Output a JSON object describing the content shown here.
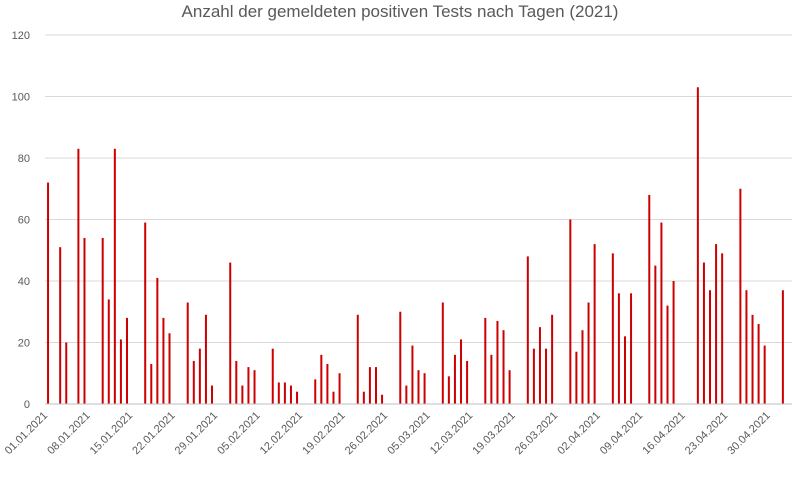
{
  "chart_data": {
    "type": "bar",
    "title": "Anzahl der gemeldeten positiven Tests nach Tagen (2021)",
    "xlabel": "",
    "ylabel": "",
    "ylim": [
      0,
      120
    ],
    "yticks": [
      0,
      20,
      40,
      60,
      80,
      100,
      120
    ],
    "grid": true,
    "bar_color": "#cc0000",
    "x_start": "2021-01-01",
    "x_end": "2021-05-03",
    "x_tick_labels": [
      "01.01.2021",
      "08.01.2021",
      "15.01.2021",
      "22.01.2021",
      "29.01.2021",
      "05.02.2021",
      "12.02.2021",
      "19.02.2021",
      "26.02.2021",
      "05.03.2021",
      "12.03.2021",
      "19.03.2021",
      "26.03.2021",
      "02.04.2021",
      "09.04.2021",
      "16.04.2021",
      "23.04.2021",
      "30.04.2021"
    ],
    "points": [
      {
        "x": "2021-01-01",
        "y": 72
      },
      {
        "x": "2021-01-03",
        "y": 51
      },
      {
        "x": "2021-01-04",
        "y": 20
      },
      {
        "x": "2021-01-06",
        "y": 83
      },
      {
        "x": "2021-01-07",
        "y": 54
      },
      {
        "x": "2021-01-10",
        "y": 54
      },
      {
        "x": "2021-01-11",
        "y": 34
      },
      {
        "x": "2021-01-12",
        "y": 83
      },
      {
        "x": "2021-01-13",
        "y": 21
      },
      {
        "x": "2021-01-14",
        "y": 28
      },
      {
        "x": "2021-01-17",
        "y": 59
      },
      {
        "x": "2021-01-18",
        "y": 13
      },
      {
        "x": "2021-01-19",
        "y": 41
      },
      {
        "x": "2021-01-20",
        "y": 28
      },
      {
        "x": "2021-01-21",
        "y": 23
      },
      {
        "x": "2021-01-24",
        "y": 33
      },
      {
        "x": "2021-01-25",
        "y": 14
      },
      {
        "x": "2021-01-26",
        "y": 18
      },
      {
        "x": "2021-01-27",
        "y": 29
      },
      {
        "x": "2021-01-28",
        "y": 6
      },
      {
        "x": "2021-01-31",
        "y": 46
      },
      {
        "x": "2021-02-01",
        "y": 14
      },
      {
        "x": "2021-02-02",
        "y": 6
      },
      {
        "x": "2021-02-03",
        "y": 12
      },
      {
        "x": "2021-02-04",
        "y": 11
      },
      {
        "x": "2021-02-07",
        "y": 18
      },
      {
        "x": "2021-02-08",
        "y": 7
      },
      {
        "x": "2021-02-09",
        "y": 7
      },
      {
        "x": "2021-02-10",
        "y": 6
      },
      {
        "x": "2021-02-11",
        "y": 4
      },
      {
        "x": "2021-02-14",
        "y": 8
      },
      {
        "x": "2021-02-15",
        "y": 16
      },
      {
        "x": "2021-02-16",
        "y": 13
      },
      {
        "x": "2021-02-17",
        "y": 4
      },
      {
        "x": "2021-02-18",
        "y": 10
      },
      {
        "x": "2021-02-21",
        "y": 29
      },
      {
        "x": "2021-02-22",
        "y": 4
      },
      {
        "x": "2021-02-23",
        "y": 12
      },
      {
        "x": "2021-02-24",
        "y": 12
      },
      {
        "x": "2021-02-25",
        "y": 3
      },
      {
        "x": "2021-02-28",
        "y": 30
      },
      {
        "x": "2021-03-01",
        "y": 6
      },
      {
        "x": "2021-03-02",
        "y": 19
      },
      {
        "x": "2021-03-03",
        "y": 11
      },
      {
        "x": "2021-03-04",
        "y": 10
      },
      {
        "x": "2021-03-07",
        "y": 33
      },
      {
        "x": "2021-03-08",
        "y": 9
      },
      {
        "x": "2021-03-09",
        "y": 16
      },
      {
        "x": "2021-03-10",
        "y": 21
      },
      {
        "x": "2021-03-11",
        "y": 14
      },
      {
        "x": "2021-03-14",
        "y": 28
      },
      {
        "x": "2021-03-15",
        "y": 16
      },
      {
        "x": "2021-03-16",
        "y": 27
      },
      {
        "x": "2021-03-17",
        "y": 24
      },
      {
        "x": "2021-03-18",
        "y": 11
      },
      {
        "x": "2021-03-21",
        "y": 48
      },
      {
        "x": "2021-03-22",
        "y": 18
      },
      {
        "x": "2021-03-23",
        "y": 25
      },
      {
        "x": "2021-03-24",
        "y": 18
      },
      {
        "x": "2021-03-25",
        "y": 29
      },
      {
        "x": "2021-03-28",
        "y": 60
      },
      {
        "x": "2021-03-29",
        "y": 17
      },
      {
        "x": "2021-03-30",
        "y": 24
      },
      {
        "x": "2021-03-31",
        "y": 33
      },
      {
        "x": "2021-04-01",
        "y": 52
      },
      {
        "x": "2021-04-04",
        "y": 49
      },
      {
        "x": "2021-04-05",
        "y": 36
      },
      {
        "x": "2021-04-06",
        "y": 22
      },
      {
        "x": "2021-04-07",
        "y": 36
      },
      {
        "x": "2021-04-10",
        "y": 68
      },
      {
        "x": "2021-04-11",
        "y": 45
      },
      {
        "x": "2021-04-12",
        "y": 59
      },
      {
        "x": "2021-04-13",
        "y": 32
      },
      {
        "x": "2021-04-14",
        "y": 40
      },
      {
        "x": "2021-04-18",
        "y": 103
      },
      {
        "x": "2021-04-19",
        "y": 46
      },
      {
        "x": "2021-04-20",
        "y": 37
      },
      {
        "x": "2021-04-21",
        "y": 52
      },
      {
        "x": "2021-04-22",
        "y": 49
      },
      {
        "x": "2021-04-25",
        "y": 70
      },
      {
        "x": "2021-04-26",
        "y": 37
      },
      {
        "x": "2021-04-27",
        "y": 29
      },
      {
        "x": "2021-04-28",
        "y": 26
      },
      {
        "x": "2021-04-29",
        "y": 19
      },
      {
        "x": "2021-05-02",
        "y": 37
      }
    ]
  }
}
